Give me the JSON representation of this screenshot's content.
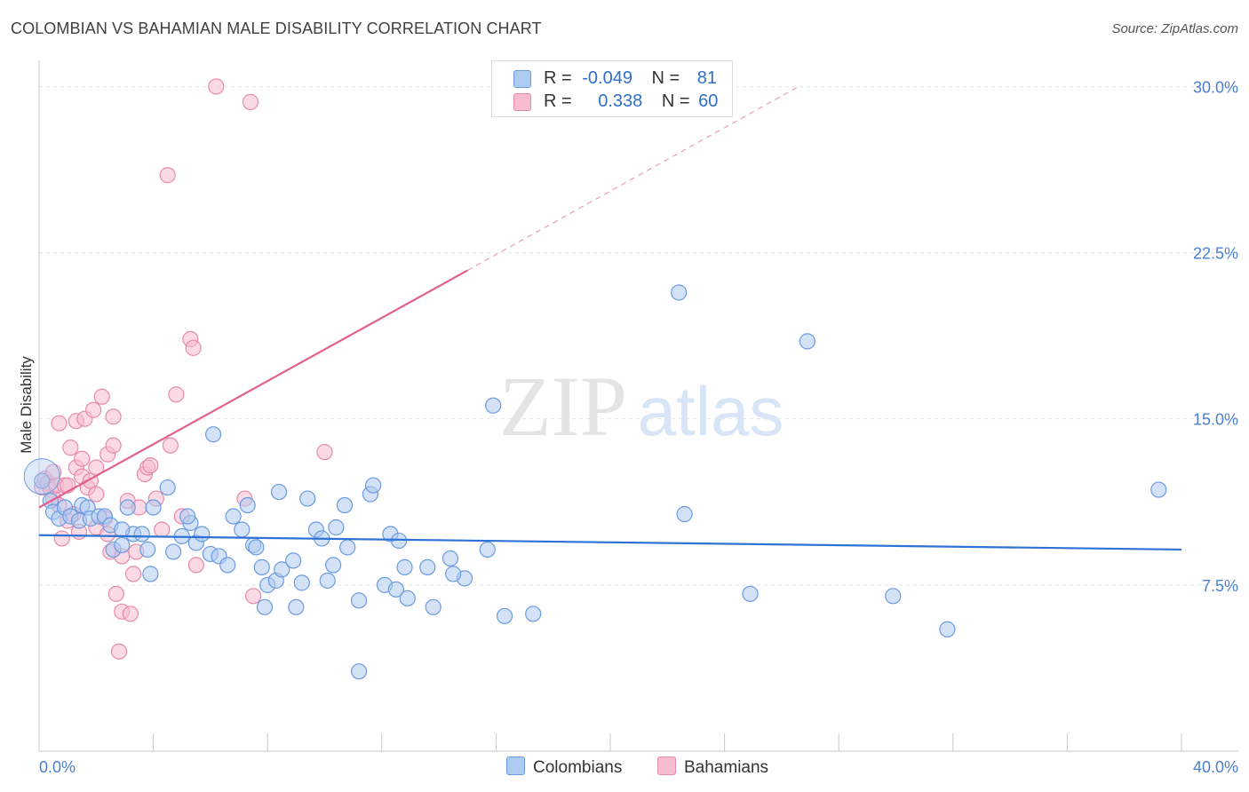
{
  "title": "COLOMBIAN VS BAHAMIAN MALE DISABILITY CORRELATION CHART",
  "source": "Source: ZipAtlas.com",
  "watermark": {
    "zip": "ZIP",
    "atlas": "atlas"
  },
  "legend": {
    "rows": [
      {
        "r_label": "R =",
        "r_value": "-0.049",
        "n_label": "N =",
        "n_value": "81"
      },
      {
        "r_label": "R =",
        "r_value": "0.338",
        "n_label": "N =",
        "n_value": "60"
      }
    ]
  },
  "bottom_legend": {
    "colombians": "Colombians",
    "bahamians": "Bahamians"
  },
  "colors": {
    "blue_fill": "#aecbf1",
    "blue_stroke": "#6b9be0",
    "blue_line": "#2f72d6",
    "pink_fill": "#f8bcd0",
    "pink_stroke": "#e98aab",
    "pink_line": "#e0608f",
    "grid": "#e3e3e3",
    "axis_label": "#4a7fd0"
  },
  "chart_data": {
    "type": "scatter",
    "title": "COLOMBIAN VS BAHAMIAN MALE DISABILITY CORRELATION CHART",
    "xlabel": "",
    "ylabel": "Male Disability",
    "xlim": [
      0,
      40
    ],
    "ylim": [
      0,
      31.5
    ],
    "x_tick_labels": [
      "0.0%",
      "40.0%"
    ],
    "y_ticks": [
      7.5,
      15.0,
      22.5,
      30.0
    ],
    "y_tick_labels": [
      "7.5%",
      "15.0%",
      "22.5%",
      "30.0%"
    ],
    "grid": true,
    "series": [
      {
        "name": "Colombians",
        "R": -0.049,
        "N": 81,
        "trend": {
          "x0": 0,
          "y0": 9.75,
          "x1": 40,
          "y1": 9.1
        },
        "points": [
          [
            0.1,
            12.2
          ],
          [
            0.4,
            11.3
          ],
          [
            0.5,
            10.8
          ],
          [
            0.7,
            10.5
          ],
          [
            0.9,
            11.0
          ],
          [
            1.1,
            10.6
          ],
          [
            1.4,
            10.4
          ],
          [
            1.5,
            11.1
          ],
          [
            1.7,
            11.0
          ],
          [
            1.8,
            10.5
          ],
          [
            2.1,
            10.6
          ],
          [
            2.3,
            10.6
          ],
          [
            2.5,
            10.2
          ],
          [
            2.6,
            9.1
          ],
          [
            2.9,
            9.3
          ],
          [
            3.1,
            11.0
          ],
          [
            3.3,
            9.8
          ],
          [
            3.6,
            9.8
          ],
          [
            3.8,
            9.1
          ],
          [
            4.0,
            11.0
          ],
          [
            4.5,
            11.9
          ],
          [
            4.7,
            9.0
          ],
          [
            5.0,
            9.7
          ],
          [
            5.3,
            10.3
          ],
          [
            5.5,
            9.4
          ],
          [
            5.7,
            9.8
          ],
          [
            6.0,
            8.9
          ],
          [
            6.1,
            14.3
          ],
          [
            6.3,
            8.8
          ],
          [
            6.6,
            8.4
          ],
          [
            6.8,
            10.6
          ],
          [
            7.1,
            10.0
          ],
          [
            7.3,
            11.1
          ],
          [
            7.5,
            9.3
          ],
          [
            7.6,
            9.2
          ],
          [
            7.8,
            8.3
          ],
          [
            7.9,
            6.5
          ],
          [
            8.0,
            7.5
          ],
          [
            8.3,
            7.7
          ],
          [
            8.4,
            11.7
          ],
          [
            8.5,
            8.2
          ],
          [
            8.9,
            8.6
          ],
          [
            9.0,
            6.5
          ],
          [
            9.2,
            7.6
          ],
          [
            9.4,
            11.4
          ],
          [
            9.7,
            10.0
          ],
          [
            9.9,
            9.6
          ],
          [
            10.1,
            7.7
          ],
          [
            10.3,
            8.4
          ],
          [
            10.4,
            10.1
          ],
          [
            10.7,
            11.1
          ],
          [
            10.8,
            9.2
          ],
          [
            11.2,
            6.8
          ],
          [
            11.2,
            3.6
          ],
          [
            11.6,
            11.6
          ],
          [
            11.7,
            12.0
          ],
          [
            12.1,
            7.5
          ],
          [
            12.3,
            9.8
          ],
          [
            12.5,
            7.3
          ],
          [
            12.6,
            9.5
          ],
          [
            12.9,
            6.9
          ],
          [
            12.8,
            8.3
          ],
          [
            13.8,
            6.5
          ],
          [
            13.6,
            8.3
          ],
          [
            14.4,
            8.7
          ],
          [
            14.9,
            7.8
          ],
          [
            14.5,
            8.0
          ],
          [
            15.7,
            9.1
          ],
          [
            15.9,
            15.6
          ],
          [
            16.3,
            6.1
          ],
          [
            17.3,
            6.2
          ],
          [
            22.6,
            10.7
          ],
          [
            22.4,
            20.7
          ],
          [
            24.9,
            7.1
          ],
          [
            26.9,
            18.5
          ],
          [
            29.9,
            7.0
          ],
          [
            31.8,
            5.5
          ],
          [
            39.2,
            11.8
          ],
          [
            2.9,
            10.0
          ],
          [
            3.9,
            8.0
          ],
          [
            5.2,
            10.6
          ]
        ]
      },
      {
        "name": "Bahamians",
        "R": 0.338,
        "N": 60,
        "trend": {
          "x0": 0,
          "y0": 11.0,
          "x1": 15.0,
          "y1": 21.7,
          "dash_x1": 26.6,
          "dash_y1": 30.0
        },
        "points": [
          [
            0.1,
            11.9
          ],
          [
            0.2,
            12.3
          ],
          [
            0.3,
            12.1
          ],
          [
            0.4,
            11.8
          ],
          [
            0.5,
            11.4
          ],
          [
            0.6,
            12.0
          ],
          [
            0.7,
            14.8
          ],
          [
            0.7,
            11.1
          ],
          [
            0.8,
            9.6
          ],
          [
            0.9,
            12.0
          ],
          [
            1.0,
            10.4
          ],
          [
            1.1,
            13.7
          ],
          [
            1.2,
            10.7
          ],
          [
            1.3,
            12.8
          ],
          [
            1.3,
            14.9
          ],
          [
            1.4,
            9.9
          ],
          [
            1.5,
            13.2
          ],
          [
            1.5,
            12.4
          ],
          [
            1.6,
            15.0
          ],
          [
            1.7,
            11.9
          ],
          [
            1.8,
            12.2
          ],
          [
            1.9,
            15.4
          ],
          [
            2.0,
            10.1
          ],
          [
            2.0,
            12.8
          ],
          [
            2.2,
            16.0
          ],
          [
            2.3,
            10.5
          ],
          [
            2.4,
            13.4
          ],
          [
            2.5,
            9.0
          ],
          [
            2.6,
            13.8
          ],
          [
            2.6,
            15.1
          ],
          [
            2.7,
            7.1
          ],
          [
            2.8,
            4.5
          ],
          [
            2.9,
            6.3
          ],
          [
            2.9,
            8.8
          ],
          [
            3.1,
            11.3
          ],
          [
            3.2,
            6.2
          ],
          [
            3.3,
            8.0
          ],
          [
            3.4,
            9.0
          ],
          [
            3.5,
            11.0
          ],
          [
            3.7,
            12.5
          ],
          [
            3.8,
            12.8
          ],
          [
            3.9,
            12.9
          ],
          [
            4.1,
            11.4
          ],
          [
            4.3,
            10.0
          ],
          [
            4.5,
            26.0
          ],
          [
            4.6,
            13.8
          ],
          [
            4.8,
            16.1
          ],
          [
            5.0,
            10.6
          ],
          [
            5.3,
            18.6
          ],
          [
            5.4,
            18.2
          ],
          [
            5.5,
            8.4
          ],
          [
            6.2,
            30.0
          ],
          [
            7.4,
            29.3
          ],
          [
            7.5,
            7.0
          ],
          [
            7.2,
            11.4
          ],
          [
            10.0,
            13.5
          ],
          [
            0.5,
            12.6
          ],
          [
            1.0,
            12.0
          ],
          [
            2.0,
            11.6
          ],
          [
            2.4,
            9.8
          ]
        ]
      }
    ]
  }
}
